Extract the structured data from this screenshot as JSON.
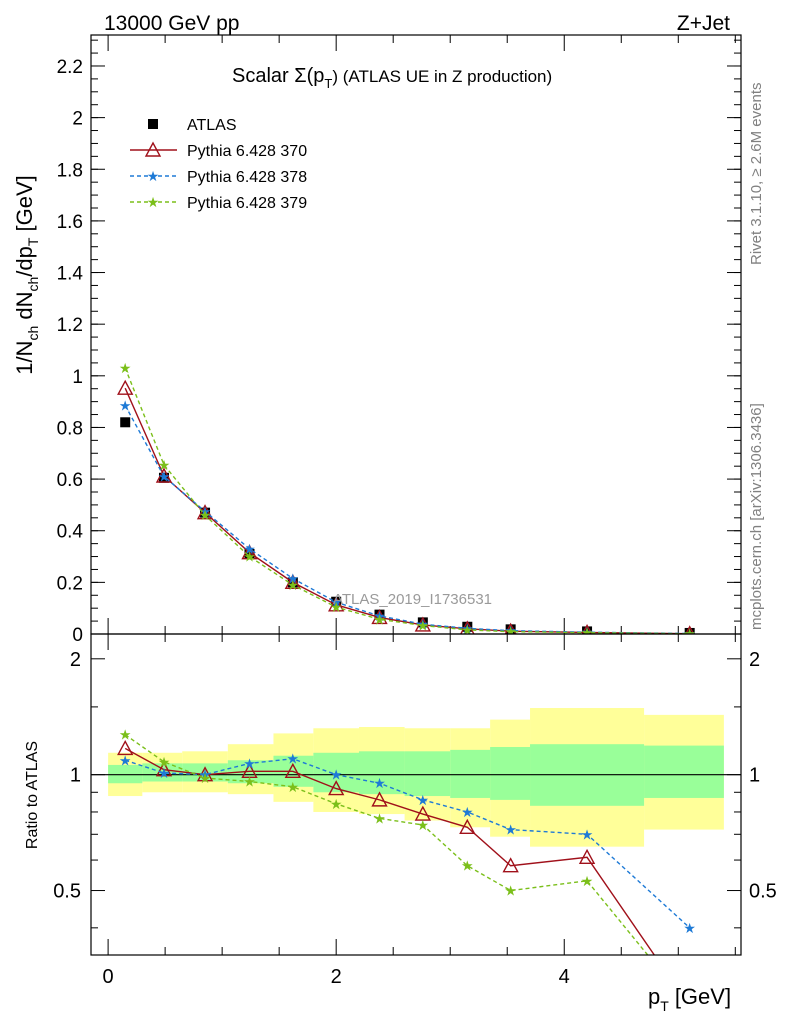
{
  "header": {
    "left": "13000 GeV pp",
    "right": "Z+Jet"
  },
  "side_labels": {
    "rivet": "Rivet 3.1.10, ≥ 2.6M events",
    "mcplots": "mcplots.cern.ch [arXiv:1306.3436]"
  },
  "colors": {
    "data": "#000000",
    "py370": "#a0101a",
    "py378": "#1e7ad6",
    "py379": "#7bbf1a",
    "band_outer": "#ffff99",
    "band_inner": "#99ff99"
  },
  "chart_data": [
    {
      "type": "line",
      "title_prefix": "Scalar Σ(p",
      "title_sub": "T",
      "title_suffix": ") (ATLAS UE in Z production)",
      "watermark": "ATLAS_2019_I1736531",
      "ylabel": "1/N_ch dN_ch/dp_T [GeV]",
      "xlim": [
        -0.15,
        5.55
      ],
      "ylim": [
        0,
        2.32
      ],
      "yticks": [
        "0",
        "0.2",
        "0.4",
        "0.6",
        "0.8",
        "1",
        "1.2",
        "1.4",
        "1.6",
        "1.8",
        "2",
        "2.2"
      ],
      "x": [
        0.15,
        0.49,
        0.85,
        1.24,
        1.62,
        2.0,
        2.38,
        2.76,
        3.15,
        3.53,
        4.2,
        5.1
      ],
      "series": [
        {
          "name": "ATLAS",
          "marker": "square",
          "values": [
            0.82,
            0.605,
            0.47,
            0.31,
            0.2,
            0.125,
            0.075,
            0.045,
            0.028,
            0.018,
            0.01,
            0.004
          ]
        },
        {
          "name": "Pythia 6.428 370",
          "marker": "triangle-open",
          "values": [
            0.952,
            0.612,
            0.47,
            0.315,
            0.2,
            0.113,
            0.064,
            0.035,
            0.02,
            0.011,
            0.006,
            0.001
          ]
        },
        {
          "name": "Pythia 6.428 378",
          "marker": "star",
          "values": [
            0.885,
            0.61,
            0.475,
            0.33,
            0.215,
            0.123,
            0.07,
            0.038,
            0.022,
            0.013,
            0.007,
            0.002
          ]
        },
        {
          "name": "Pythia 6.428 379",
          "marker": "star",
          "values": [
            1.03,
            0.655,
            0.46,
            0.3,
            0.19,
            0.104,
            0.057,
            0.033,
            0.016,
            0.009,
            0.005,
            0.001
          ]
        }
      ]
    },
    {
      "type": "line",
      "xlabel_main": "p",
      "xlabel_sub": "T",
      "xlabel_unit": "[GeV]",
      "ylabel": "Ratio to ATLAS",
      "xlim": [
        -0.15,
        5.55
      ],
      "ylim": [
        0.34,
        2.32
      ],
      "xticks": [
        "0",
        "2",
        "4"
      ],
      "yticks": [
        "0.5",
        "1",
        "2"
      ],
      "bands": {
        "edges": [
          0,
          0.3,
          0.65,
          1.05,
          1.45,
          1.8,
          2.2,
          2.6,
          3.0,
          3.35,
          3.7,
          4.7,
          5.4
        ],
        "outer_lo": [
          0.88,
          0.9,
          0.9,
          0.89,
          0.85,
          0.8,
          0.79,
          0.76,
          0.73,
          0.69,
          0.65,
          0.72
        ],
        "outer_hi": [
          1.14,
          1.14,
          1.15,
          1.2,
          1.28,
          1.32,
          1.33,
          1.32,
          1.32,
          1.39,
          1.49,
          1.43
        ],
        "inner_lo": [
          0.95,
          0.96,
          0.96,
          0.95,
          0.93,
          0.9,
          0.89,
          0.88,
          0.87,
          0.86,
          0.83,
          0.87
        ],
        "inner_hi": [
          1.06,
          1.07,
          1.07,
          1.09,
          1.12,
          1.14,
          1.15,
          1.15,
          1.16,
          1.18,
          1.2,
          1.19
        ]
      },
      "x": [
        0.15,
        0.49,
        0.85,
        1.24,
        1.62,
        2.0,
        2.38,
        2.76,
        3.15,
        3.53,
        4.2,
        5.1
      ],
      "series": [
        {
          "name": "Pythia 6.428 370",
          "values": [
            1.17,
            1.03,
            1.0,
            1.02,
            1.02,
            0.92,
            0.86,
            0.79,
            0.73,
            0.58,
            0.61,
            0.25
          ]
        },
        {
          "name": "Pythia 6.428 378",
          "values": [
            1.09,
            1.01,
            1.0,
            1.07,
            1.1,
            1.0,
            0.95,
            0.86,
            0.8,
            0.72,
            0.7,
            0.4
          ]
        },
        {
          "name": "Pythia 6.428 379",
          "values": [
            1.27,
            1.08,
            0.98,
            0.96,
            0.93,
            0.84,
            0.77,
            0.74,
            0.58,
            0.5,
            0.53,
            0.25
          ]
        }
      ]
    }
  ]
}
